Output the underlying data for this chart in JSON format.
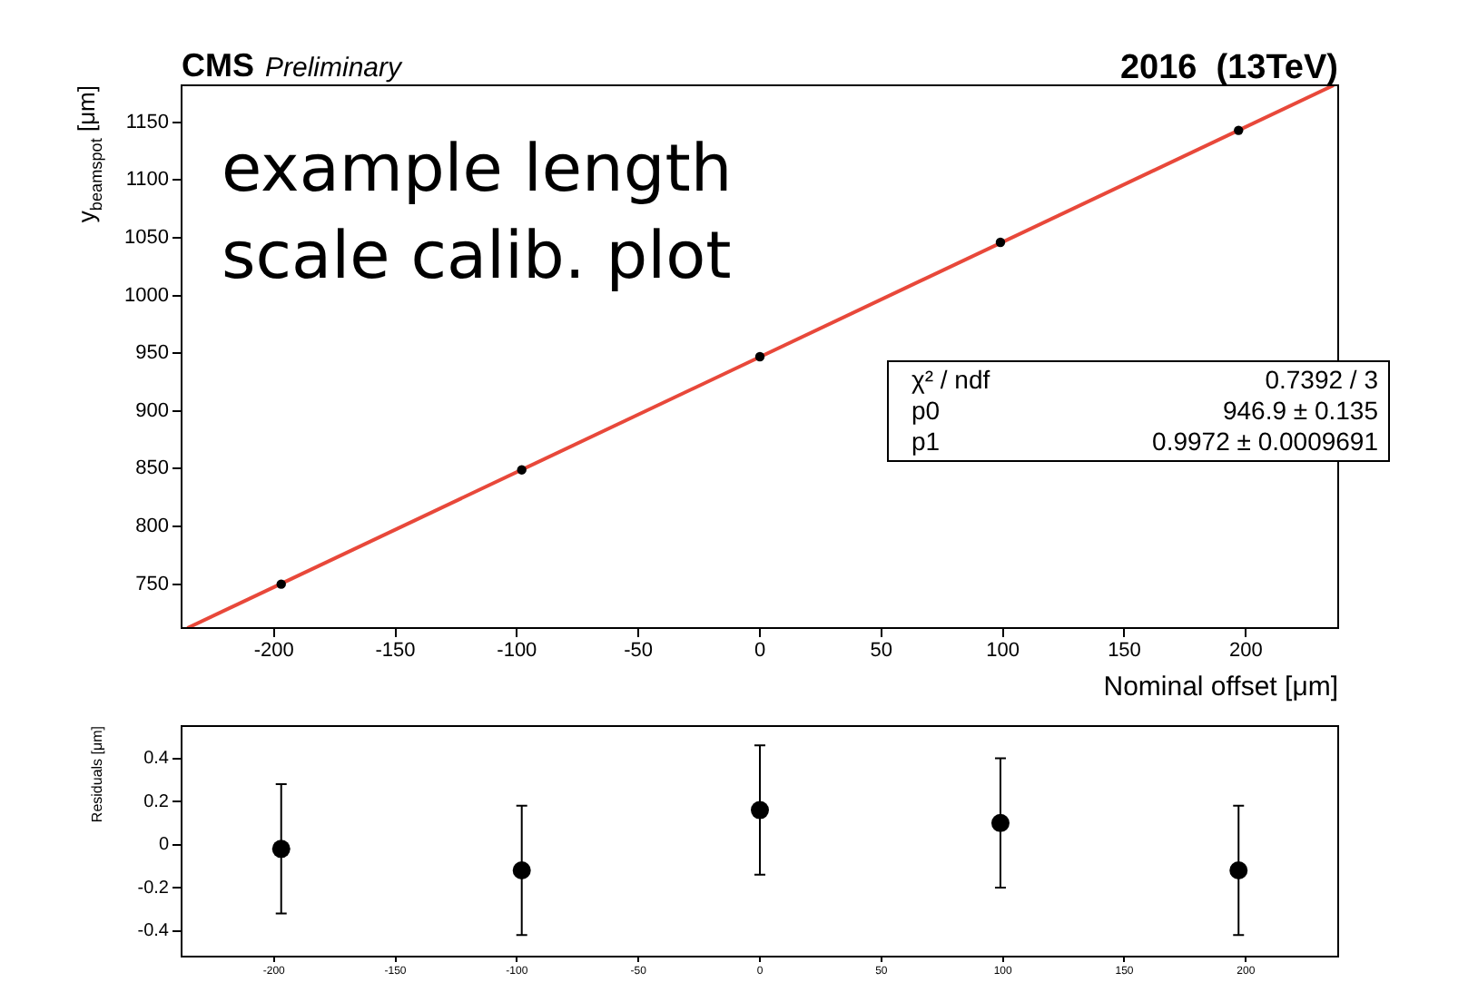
{
  "chart_data": [
    {
      "type": "scatter",
      "ylabel": "y$_{beamspot}$ [μm]",
      "xlabel": "Nominal offset [μm]",
      "xlim": [
        -238,
        238
      ],
      "xticks": [
        -200,
        -150,
        -100,
        -50,
        0,
        50,
        100,
        150,
        200
      ],
      "ylim": [
        712,
        1182
      ],
      "yticks": [
        750,
        800,
        850,
        900,
        950,
        1000,
        1050,
        1100,
        1150
      ],
      "marker": "circle",
      "series": [
        {
          "color": "#000000",
          "x": [
            -197,
            -98,
            0,
            99,
            197
          ],
          "values": [
            750,
            849,
            947,
            1046,
            1143
          ]
        },
        {
          "type": "line",
          "color": "#e8483a",
          "x": [
            -235.6,
            236.1
          ],
          "values": [
            712,
            1182
          ],
          "marker": "none"
        }
      ],
      "annotations": [
        "CMS",
        "Preliminary",
        "2016  (13TeV)",
        "example length scale calib. plot",
        "χ² / ndf",
        "0.7392 / 3",
        "p0",
        "946.9 ± 0.135",
        "p1",
        "0.9972 ± 0.0009691"
      ]
    },
    {
      "type": "scatter",
      "ylabel": "Residuals [μm]",
      "xlim": [
        -238,
        238
      ],
      "xticks": [
        -200,
        -150,
        -100,
        -50,
        0,
        50,
        100,
        150,
        200
      ],
      "ylim": [
        -0.52,
        0.55
      ],
      "yticks": [
        -0.4,
        -0.2,
        0,
        0.2,
        0.4
      ],
      "marker": "circle",
      "series": [
        {
          "color": "#000000",
          "x": [
            -197,
            -98,
            0,
            99,
            197
          ],
          "values": [
            -0.02,
            -0.12,
            0.16,
            0.1,
            -0.12
          ],
          "errors": [
            0.3,
            0.3,
            0.3,
            0.3,
            0.3
          ]
        }
      ]
    }
  ]
}
